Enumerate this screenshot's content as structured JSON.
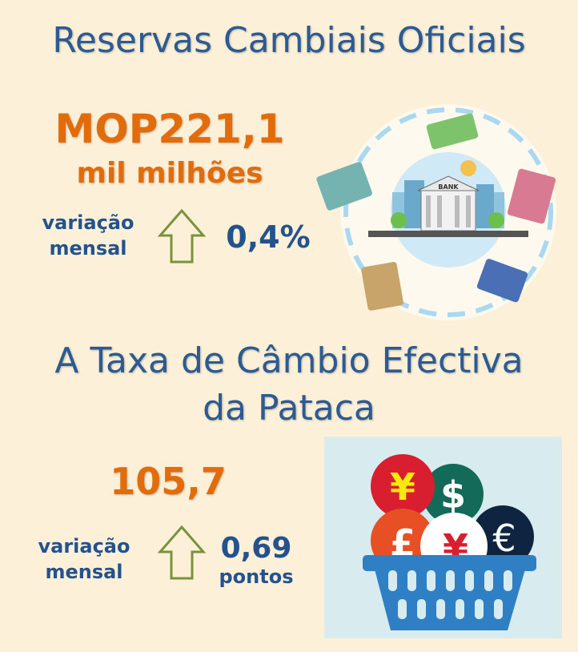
{
  "reserves": {
    "title": "Reservas Cambiais Oficiais",
    "value": "MOP221,1",
    "unit": "mil milhões",
    "change_label_line1": "variação",
    "change_label_line2": "mensal",
    "change_value": "0,4%",
    "change_direction": "up",
    "bank_sign": "BANK"
  },
  "exchange_rate": {
    "title_line1": "A Taxa de Câmbio Efectiva",
    "title_line2": "da Pataca",
    "value": "105,7",
    "change_label_line1": "variação",
    "change_label_line2": "mensal",
    "change_value": "0,69",
    "change_unit": "pontos",
    "change_direction": "up",
    "currency_symbols": [
      "¥",
      "$",
      "£",
      "¥",
      "€"
    ]
  },
  "colors": {
    "title": "#2c5a92",
    "highlight": "#e36c0a",
    "arrow": "#77933c",
    "basket": "#2f7fc4"
  }
}
